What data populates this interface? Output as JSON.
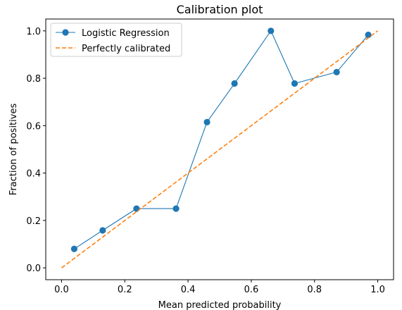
{
  "chart_data": {
    "type": "line",
    "title": "Calibration plot",
    "xlabel": "Mean predicted probability",
    "ylabel": "Fraction of positives",
    "xlim": [
      -0.05,
      1.05
    ],
    "ylim": [
      -0.05,
      1.05
    ],
    "xticks": [
      0.0,
      0.2,
      0.4,
      0.6,
      0.8,
      1.0
    ],
    "yticks": [
      0.0,
      0.2,
      0.4,
      0.6,
      0.8,
      1.0
    ],
    "xtick_labels": [
      "0.0",
      "0.2",
      "0.4",
      "0.6",
      "0.8",
      "1.0"
    ],
    "ytick_labels": [
      "0.0",
      "0.2",
      "0.4",
      "0.6",
      "0.8",
      "1.0"
    ],
    "grid": false,
    "legend_position": "top-left",
    "series": [
      {
        "name": "Logistic Regression",
        "style": "line-with-markers",
        "color": "#1f77b4",
        "x": [
          0.04,
          0.13,
          0.237,
          0.362,
          0.46,
          0.547,
          0.662,
          0.737,
          0.87,
          0.97
        ],
        "y": [
          0.08,
          0.158,
          0.25,
          0.25,
          0.615,
          0.778,
          1.0,
          0.778,
          0.826,
          0.983
        ]
      },
      {
        "name": "Perfectly calibrated",
        "style": "dashed",
        "color": "#ff7f0e",
        "x": [
          0.0,
          1.0
        ],
        "y": [
          0.0,
          1.0
        ]
      }
    ]
  }
}
